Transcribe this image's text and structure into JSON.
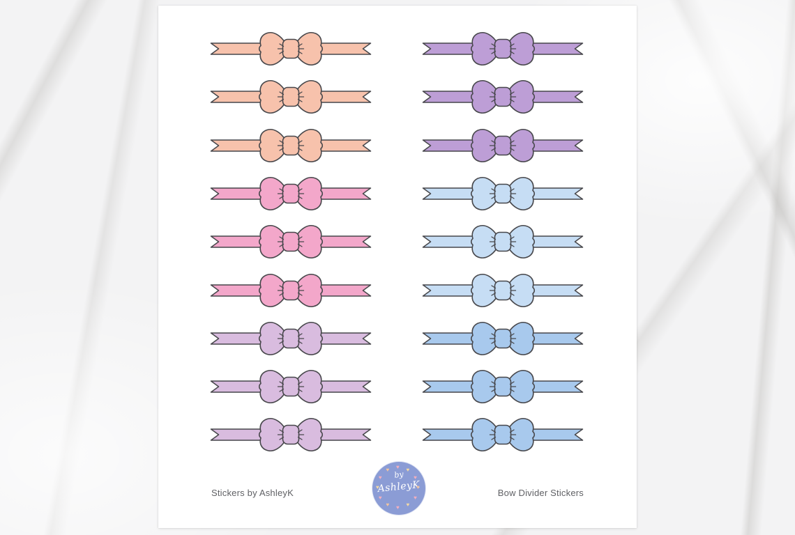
{
  "scene": {
    "background": "white-marble-surface",
    "sheet": "white-sticker-sheet"
  },
  "sticker_sheet": {
    "outline_color": "#47474B",
    "rows": [
      {
        "left": {
          "color_name": "peach",
          "hex": "#F7C2AC"
        },
        "right": {
          "color_name": "purple",
          "hex": "#BD9ED6"
        }
      },
      {
        "left": {
          "color_name": "peach",
          "hex": "#F7C2AC"
        },
        "right": {
          "color_name": "purple",
          "hex": "#BD9ED6"
        }
      },
      {
        "left": {
          "color_name": "peach",
          "hex": "#F7C2AC"
        },
        "right": {
          "color_name": "purple",
          "hex": "#BD9ED6"
        }
      },
      {
        "left": {
          "color_name": "pink",
          "hex": "#F3A7CA"
        },
        "right": {
          "color_name": "light-blue",
          "hex": "#C6DDF4"
        }
      },
      {
        "left": {
          "color_name": "pink",
          "hex": "#F3A7CA"
        },
        "right": {
          "color_name": "light-blue",
          "hex": "#C6DDF4"
        }
      },
      {
        "left": {
          "color_name": "pink",
          "hex": "#F3A7CA"
        },
        "right": {
          "color_name": "light-blue",
          "hex": "#C6DDF4"
        }
      },
      {
        "left": {
          "color_name": "lilac",
          "hex": "#D9BCDF"
        },
        "right": {
          "color_name": "blue",
          "hex": "#A8C9ED"
        }
      },
      {
        "left": {
          "color_name": "lilac",
          "hex": "#D9BCDF"
        },
        "right": {
          "color_name": "blue",
          "hex": "#A8C9ED"
        }
      },
      {
        "left": {
          "color_name": "lilac",
          "hex": "#D9BCDF"
        },
        "right": {
          "color_name": "blue",
          "hex": "#A8C9ED"
        }
      }
    ]
  },
  "footer": {
    "brand_text": "Stickers by AshleyK",
    "product_text": "Bow Divider Stickers",
    "logo": {
      "word1": "by",
      "word2": "AshleyK",
      "circle_color": "#8B9CD5",
      "heart_colors": [
        "#F2AFBE",
        "#F3D9A4",
        "#F2C49E"
      ]
    }
  }
}
